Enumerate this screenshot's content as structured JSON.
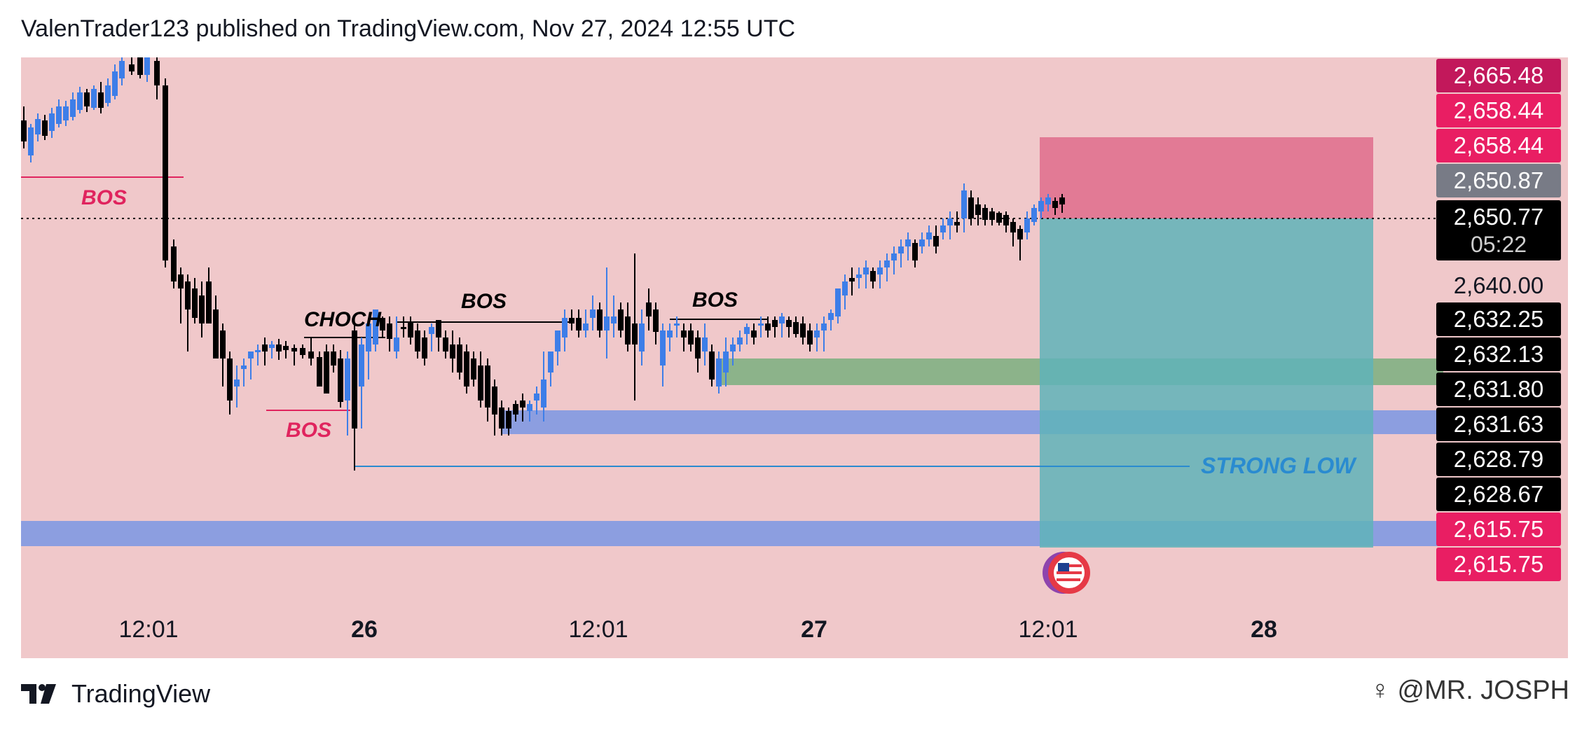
{
  "header": {
    "publish_line": "ValenTrader123 published on TradingView.com, Nov 27, 2024 12:55 UTC"
  },
  "price_axis": {
    "labels": [
      {
        "text": "2,665.48",
        "bg": "#c2185b",
        "kind": "box"
      },
      {
        "text": "2,658.44",
        "bg": "#e91e63",
        "kind": "box"
      },
      {
        "text": "2,658.44",
        "bg": "#e91e63",
        "kind": "box"
      },
      {
        "text": "2,650.87",
        "bg": "#787b86",
        "kind": "box"
      },
      {
        "text": "2,650.77",
        "bg": "#000000",
        "kind": "current",
        "countdown": "05:22"
      },
      {
        "text": "2,640.00",
        "bg": "transparent",
        "kind": "plain"
      },
      {
        "text": "2,632.25",
        "bg": "#000000",
        "kind": "box"
      },
      {
        "text": "2,632.13",
        "bg": "#000000",
        "kind": "box"
      },
      {
        "text": "2,631.80",
        "bg": "#000000",
        "kind": "box"
      },
      {
        "text": "2,631.63",
        "bg": "#000000",
        "kind": "box"
      },
      {
        "text": "2,628.79",
        "bg": "#000000",
        "kind": "box"
      },
      {
        "text": "2,628.67",
        "bg": "#000000",
        "kind": "box"
      },
      {
        "text": "2,615.75",
        "bg": "#e91e63",
        "kind": "box"
      },
      {
        "text": "2,615.75",
        "bg": "#e91e63",
        "kind": "box"
      }
    ]
  },
  "time_axis": {
    "labels": [
      {
        "text": "12:01",
        "bold": false
      },
      {
        "text": "26",
        "bold": true
      },
      {
        "text": "12:01",
        "bold": false
      },
      {
        "text": "27",
        "bold": true
      },
      {
        "text": "12:01",
        "bold": false
      },
      {
        "text": "28",
        "bold": true
      }
    ]
  },
  "annotations": {
    "bos_1": "BOS",
    "bos_2": "BOS",
    "choch": "CHOCH",
    "bos_3": "BOS",
    "bos_4": "BOS",
    "strong_low": "STRONG LOW"
  },
  "colors": {
    "background": "#f0c8ca",
    "bull": "#3d7ee8",
    "bear": "#000000",
    "bos_red": "#e0245e",
    "stop_zone": "#e0718f",
    "target_zone": "#5fb3b8",
    "green_zone": "#8cb38a",
    "blue_zone": "#8c9ee0",
    "strong_low": "#2a8bd0"
  },
  "footer": {
    "brand": "TradingView",
    "watermark": "@MR. JOSPH"
  },
  "icons": {
    "event_marker": "us-flag-icon",
    "logo": "tradingview-logo-icon"
  }
}
